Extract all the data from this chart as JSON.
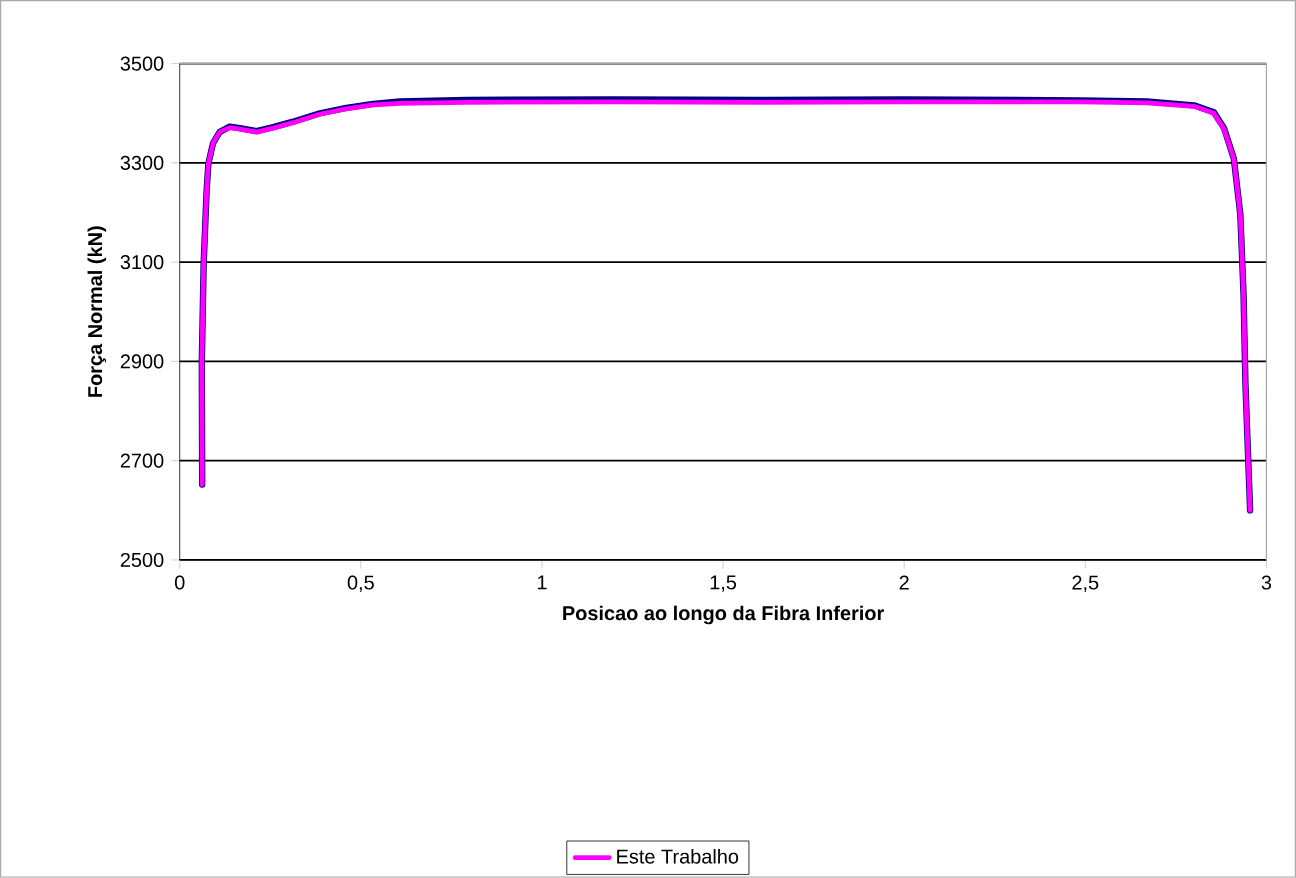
{
  "chart_data": {
    "type": "line",
    "xlabel": "Posicao ao longo da Fibra Inferior",
    "ylabel": "Força Normal (kN)",
    "xlim": [
      0,
      3
    ],
    "ylim": [
      2500,
      3500
    ],
    "xticks": [
      0,
      {
        "value": 0.5,
        "label": "0,5"
      },
      1,
      {
        "value": 1.5,
        "label": "1,5"
      },
      2,
      {
        "value": 2.5,
        "label": "2,5"
      },
      3
    ],
    "yticks": [
      2500,
      2700,
      2900,
      3100,
      3300,
      3500
    ],
    "grid": "y",
    "legend": "bottom",
    "marker": "none",
    "line_style": "solid",
    "series": [
      {
        "color": "#000080",
        "x": [
          0.062,
          0.061,
          0.066,
          0.074,
          0.079,
          0.092,
          0.11,
          0.138,
          0.166,
          0.212,
          0.258,
          0.313,
          0.387,
          0.46,
          0.534,
          0.608,
          0.792,
          1.2,
          1.6,
          2.0,
          2.486,
          2.67,
          2.8,
          2.855,
          2.883,
          2.91,
          2.928,
          2.937,
          2.942,
          2.955
        ],
        "values": [
          2652,
          2900,
          3094,
          3240,
          3298,
          3340,
          3362,
          3373,
          3370,
          3364,
          3372,
          3383,
          3400,
          3411,
          3419,
          3424,
          3427,
          3428,
          3427,
          3428,
          3426,
          3424,
          3416,
          3402,
          3370,
          3309,
          3196,
          3034,
          2857,
          2600
        ]
      },
      {
        "name": "Este Trabalho",
        "color": "#ff00ff",
        "x": [
          0.062,
          0.061,
          0.066,
          0.074,
          0.079,
          0.092,
          0.11,
          0.138,
          0.166,
          0.212,
          0.258,
          0.313,
          0.387,
          0.46,
          0.534,
          0.608,
          0.792,
          1.2,
          1.6,
          2.0,
          2.486,
          2.67,
          2.8,
          2.855,
          2.883,
          2.91,
          2.928,
          2.937,
          2.942,
          2.955
        ],
        "values": [
          2652,
          2900,
          3094,
          3240,
          3298,
          3340,
          3362,
          3371,
          3368,
          3362,
          3370,
          3381,
          3398,
          3409,
          3417,
          3420,
          3422,
          3423,
          3422,
          3423,
          3423,
          3421,
          3414,
          3400,
          3368,
          3309,
          3196,
          3034,
          2857,
          2600
        ]
      }
    ]
  }
}
